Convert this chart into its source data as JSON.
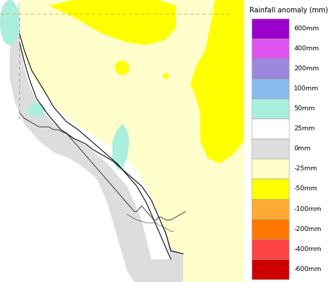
{
  "title": "Rainfall anomaly (mm)",
  "colorbar_labels": [
    "600mm",
    "400mm",
    "200mm",
    "100mm",
    "50mm",
    "25mm",
    "0mm",
    "-25mm",
    "-50mm",
    "-100mm",
    "-200mm",
    "-400mm",
    "-600mm"
  ],
  "colorbar_colors": [
    "#9900CC",
    "#DD55EE",
    "#9988DD",
    "#88BBEE",
    "#AAEEDD",
    "#FFFFFF",
    "#DDDDDD",
    "#FFFFCC",
    "#FFFF00",
    "#FFAA33",
    "#FF7700",
    "#FF4444",
    "#CC0000"
  ],
  "c_lightyellow": "#FFFFCC",
  "c_yellow": "#FFFF00",
  "c_gray": "#DDDDDD",
  "c_white": "#FFFFFF",
  "c_cyan": "#AAEEDD",
  "c_blue": "#88BBEE",
  "c_dashed_h": "#CCCC66",
  "c_dashed_v": "#888888",
  "background_color": "#FFFFFF",
  "figure_width": 4.83,
  "figure_height": 4.09,
  "dpi": 100
}
